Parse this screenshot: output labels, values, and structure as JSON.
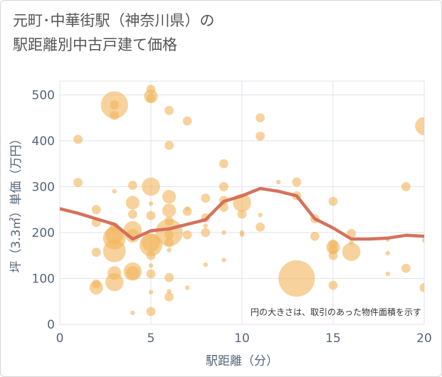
{
  "chart_data": {
    "type": "scatter",
    "title": "元町･中華街駅（神奈川県）の\n駅距離別中古戸建て価格",
    "xlabel": "駅距離（分）",
    "ylabel": "坪（3.3㎡）単価（万円）",
    "xlim": [
      0,
      20
    ],
    "ylim": [
      0,
      530
    ],
    "x_ticks": [
      "0",
      "5",
      "10",
      "15",
      "20"
    ],
    "y_ticks": [
      "0",
      "100",
      "200",
      "300",
      "400",
      "500"
    ],
    "grid": true,
    "note": "円の大きさは、取引のあった物件面積を示す",
    "colors": {
      "bubble": "#f2b45a",
      "trend": "#d26a55",
      "grid": "#dfe3e8",
      "text": "#56657a"
    },
    "bubbles": [
      {
        "x": 1,
        "y": 403,
        "s": 2
      },
      {
        "x": 1,
        "y": 309,
        "s": 2
      },
      {
        "x": 2,
        "y": 250,
        "s": 2
      },
      {
        "x": 2,
        "y": 222,
        "s": 2
      },
      {
        "x": 2,
        "y": 157,
        "s": 2
      },
      {
        "x": 2,
        "y": 88,
        "s": 2
      },
      {
        "x": 2,
        "y": 80,
        "s": 3
      },
      {
        "x": 3,
        "y": 478,
        "s": 6
      },
      {
        "x": 3,
        "y": 478,
        "s": 2
      },
      {
        "x": 3,
        "y": 455,
        "s": 2
      },
      {
        "x": 3,
        "y": 290,
        "s": 1
      },
      {
        "x": 3,
        "y": 212,
        "s": 2
      },
      {
        "x": 3,
        "y": 195,
        "s": 4
      },
      {
        "x": 3,
        "y": 188,
        "s": 5
      },
      {
        "x": 3,
        "y": 160,
        "s": 5
      },
      {
        "x": 3,
        "y": 112,
        "s": 3
      },
      {
        "x": 3,
        "y": 92,
        "s": 4
      },
      {
        "x": 4,
        "y": 303,
        "s": 2
      },
      {
        "x": 4,
        "y": 265,
        "s": 3
      },
      {
        "x": 4,
        "y": 240,
        "s": 2
      },
      {
        "x": 4,
        "y": 205,
        "s": 4
      },
      {
        "x": 4,
        "y": 193,
        "s": 3
      },
      {
        "x": 4,
        "y": 115,
        "s": 4
      },
      {
        "x": 4,
        "y": 112,
        "s": 3
      },
      {
        "x": 4,
        "y": 25,
        "s": 1
      },
      {
        "x": 5,
        "y": 512,
        "s": 2
      },
      {
        "x": 5,
        "y": 497,
        "s": 3
      },
      {
        "x": 5,
        "y": 492,
        "s": 2
      },
      {
        "x": 5,
        "y": 300,
        "s": 4
      },
      {
        "x": 5,
        "y": 263,
        "s": 1
      },
      {
        "x": 5,
        "y": 237,
        "s": 2
      },
      {
        "x": 5,
        "y": 178,
        "s": 4
      },
      {
        "x": 5,
        "y": 173,
        "s": 5
      },
      {
        "x": 5,
        "y": 150,
        "s": 2
      },
      {
        "x": 5,
        "y": 128,
        "s": 1
      },
      {
        "x": 5,
        "y": 110,
        "s": 2
      },
      {
        "x": 5,
        "y": 70,
        "s": 1
      },
      {
        "x": 5,
        "y": 28,
        "s": 2
      },
      {
        "x": 6,
        "y": 466,
        "s": 2
      },
      {
        "x": 6,
        "y": 390,
        "s": 2
      },
      {
        "x": 6,
        "y": 278,
        "s": 3
      },
      {
        "x": 6,
        "y": 248,
        "s": 3
      },
      {
        "x": 6,
        "y": 225,
        "s": 2
      },
      {
        "x": 6,
        "y": 200,
        "s": 6
      },
      {
        "x": 6,
        "y": 195,
        "s": 2
      },
      {
        "x": 6,
        "y": 178,
        "s": 2
      },
      {
        "x": 6,
        "y": 162,
        "s": 1
      },
      {
        "x": 6,
        "y": 102,
        "s": 2
      },
      {
        "x": 6,
        "y": 72,
        "s": 1
      },
      {
        "x": 6,
        "y": 60,
        "s": 2
      },
      {
        "x": 7,
        "y": 443,
        "s": 2
      },
      {
        "x": 7,
        "y": 252,
        "s": 1
      },
      {
        "x": 7,
        "y": 246,
        "s": 2
      },
      {
        "x": 7,
        "y": 195,
        "s": 2
      },
      {
        "x": 7,
        "y": 80,
        "s": 1
      },
      {
        "x": 8,
        "y": 275,
        "s": 2
      },
      {
        "x": 8,
        "y": 232,
        "s": 2
      },
      {
        "x": 8,
        "y": 215,
        "s": 1
      },
      {
        "x": 8,
        "y": 200,
        "s": 2
      },
      {
        "x": 8,
        "y": 130,
        "s": 1
      },
      {
        "x": 9,
        "y": 350,
        "s": 2
      },
      {
        "x": 9,
        "y": 300,
        "s": 2
      },
      {
        "x": 9,
        "y": 270,
        "s": 2
      },
      {
        "x": 9,
        "y": 255,
        "s": 2
      },
      {
        "x": 9,
        "y": 200,
        "s": 1
      },
      {
        "x": 9,
        "y": 140,
        "s": 1
      },
      {
        "x": 10,
        "y": 265,
        "s": 4
      },
      {
        "x": 10,
        "y": 240,
        "s": 2
      },
      {
        "x": 10,
        "y": 200,
        "s": 1
      },
      {
        "x": 10,
        "y": 195,
        "s": 1
      },
      {
        "x": 11,
        "y": 450,
        "s": 2
      },
      {
        "x": 11,
        "y": 410,
        "s": 2
      },
      {
        "x": 11,
        "y": 238,
        "s": 1
      },
      {
        "x": 11,
        "y": 212,
        "s": 2
      },
      {
        "x": 12,
        "y": 310,
        "s": 1
      },
      {
        "x": 13,
        "y": 310,
        "s": 2
      },
      {
        "x": 13,
        "y": 280,
        "s": 2
      },
      {
        "x": 13,
        "y": 100,
        "s": 8
      },
      {
        "x": 14,
        "y": 230,
        "s": 2
      },
      {
        "x": 14,
        "y": 192,
        "s": 2
      },
      {
        "x": 15,
        "y": 268,
        "s": 2
      },
      {
        "x": 15,
        "y": 175,
        "s": 2
      },
      {
        "x": 15,
        "y": 168,
        "s": 3
      },
      {
        "x": 15,
        "y": 163,
        "s": 2
      },
      {
        "x": 15,
        "y": 150,
        "s": 2
      },
      {
        "x": 15,
        "y": 85,
        "s": 2
      },
      {
        "x": 16,
        "y": 198,
        "s": 2
      },
      {
        "x": 16,
        "y": 178,
        "s": 1
      },
      {
        "x": 16,
        "y": 158,
        "s": 4
      },
      {
        "x": 18,
        "y": 185,
        "s": 1
      },
      {
        "x": 18,
        "y": 155,
        "s": 1
      },
      {
        "x": 18,
        "y": 110,
        "s": 1
      },
      {
        "x": 19,
        "y": 300,
        "s": 2
      },
      {
        "x": 19,
        "y": 122,
        "s": 2
      },
      {
        "x": 20,
        "y": 432,
        "s": 4
      },
      {
        "x": 20,
        "y": 183,
        "s": 1
      },
      {
        "x": 20,
        "y": 80,
        "s": 2
      }
    ],
    "trend": {
      "name": "",
      "x": [
        0,
        1,
        2,
        3,
        4,
        5,
        6,
        7,
        8,
        9,
        10,
        11,
        12,
        13,
        14,
        15,
        16,
        17,
        18,
        19,
        20
      ],
      "y": [
        252,
        242,
        230,
        218,
        186,
        204,
        208,
        218,
        228,
        268,
        280,
        296,
        290,
        280,
        230,
        210,
        186,
        186,
        188,
        194,
        192
      ]
    }
  }
}
